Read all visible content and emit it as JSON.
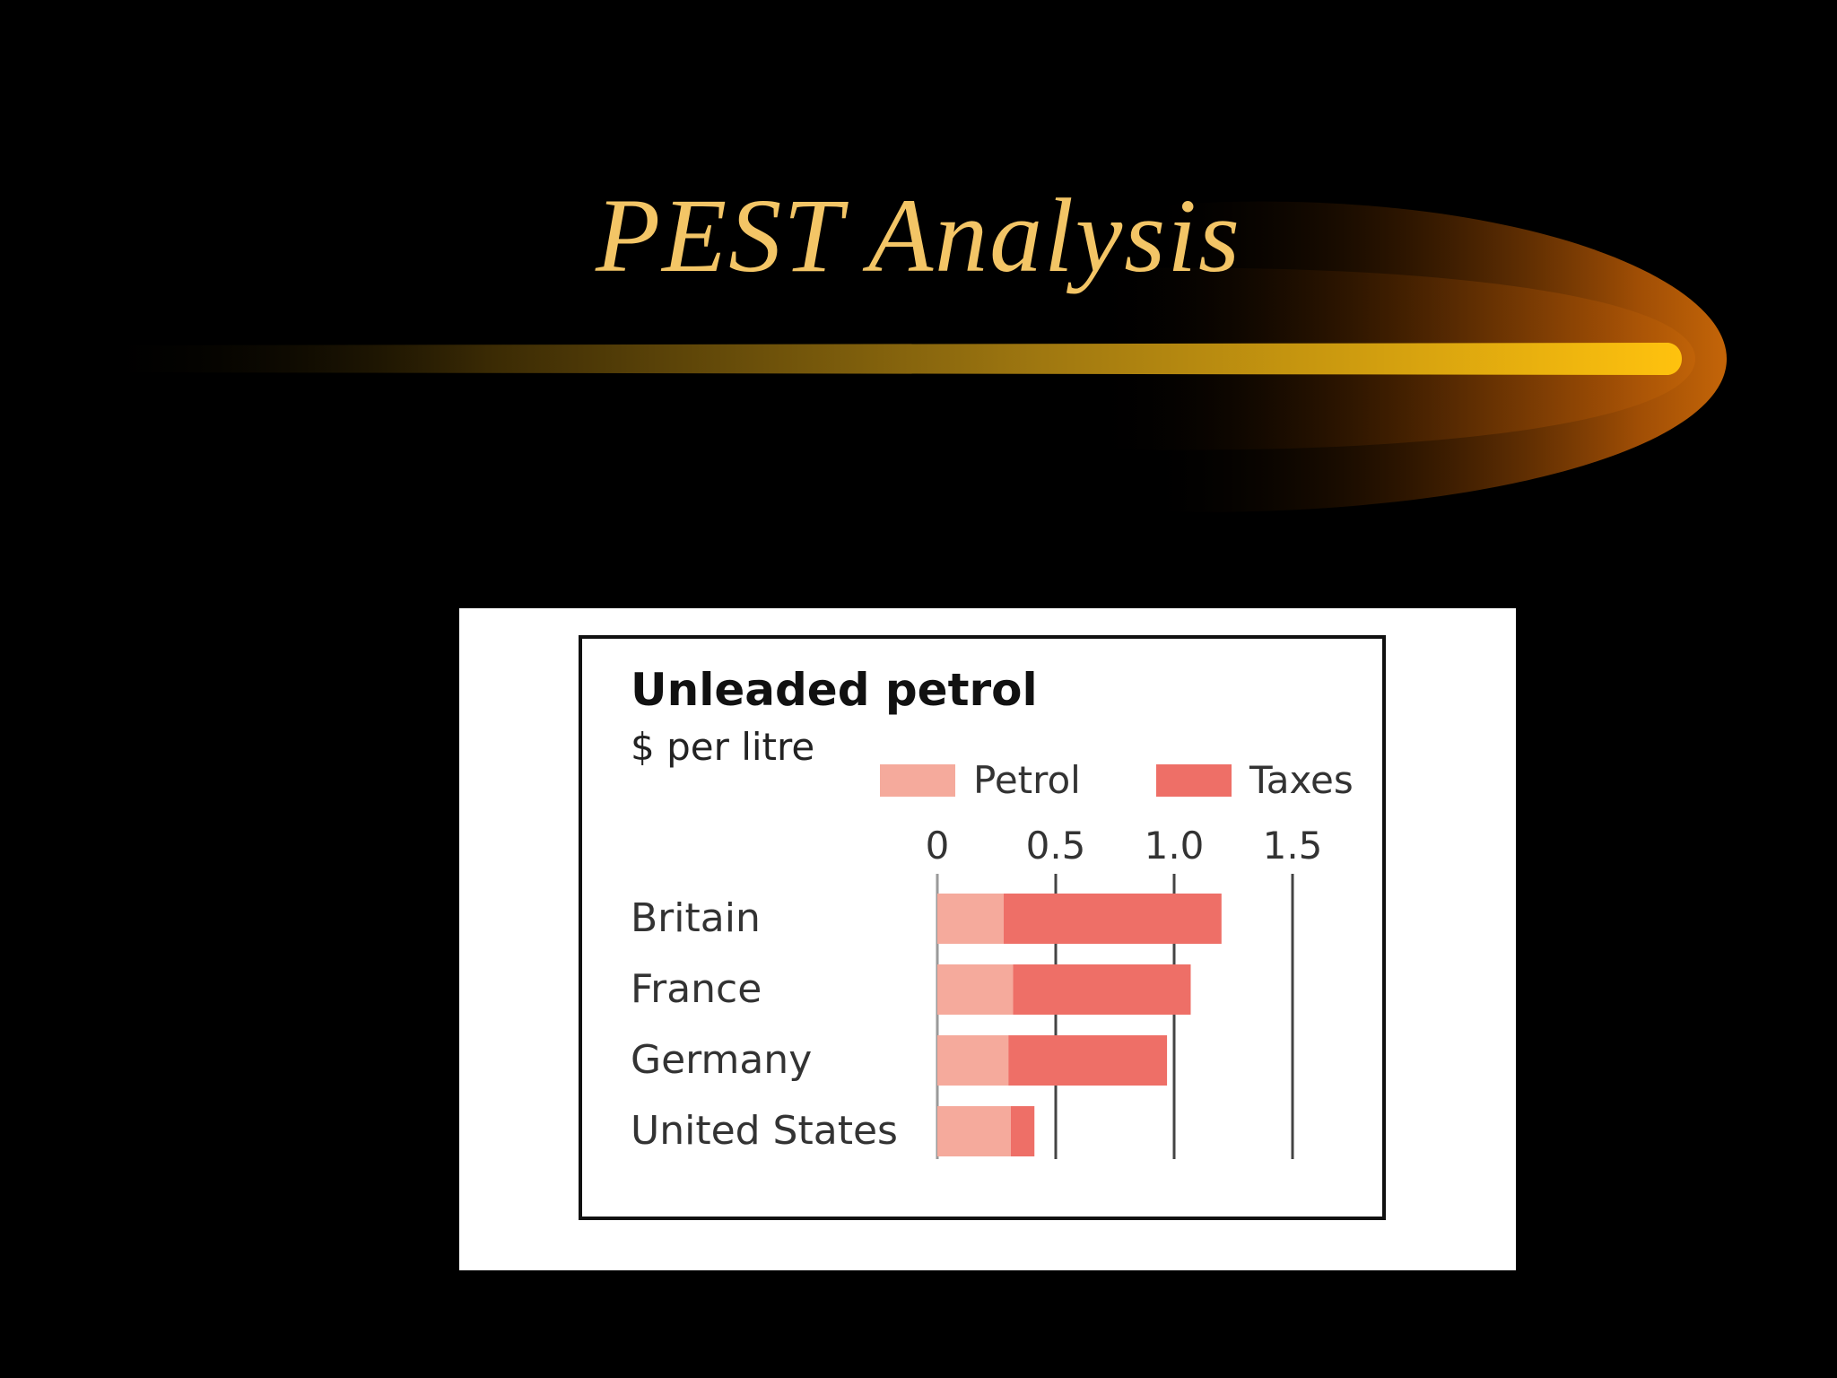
{
  "slide": {
    "title": "PEST Analysis",
    "accent_color": "#f3c566",
    "background_color": "#000000"
  },
  "chart_data": {
    "type": "bar",
    "orientation": "horizontal",
    "stacked": true,
    "title": "Unleaded petrol",
    "subtitle": "$ per litre",
    "categories": [
      "Britain",
      "France",
      "Germany",
      "United States"
    ],
    "series": [
      {
        "name": "Petrol",
        "color": "#f5aa9c",
        "values": [
          0.28,
          0.32,
          0.3,
          0.31
        ]
      },
      {
        "name": "Taxes",
        "color": "#ee6f67",
        "values": [
          0.92,
          0.75,
          0.67,
          0.1
        ]
      }
    ],
    "xlim": [
      0,
      1.5
    ],
    "xticks": [
      0,
      0.5,
      1.0,
      1.5
    ],
    "xtick_labels": [
      "0",
      "0.5",
      "1.0",
      "1.5"
    ],
    "xlabel": "",
    "ylabel": "",
    "legend_position": "top-right",
    "grid": "vertical"
  }
}
